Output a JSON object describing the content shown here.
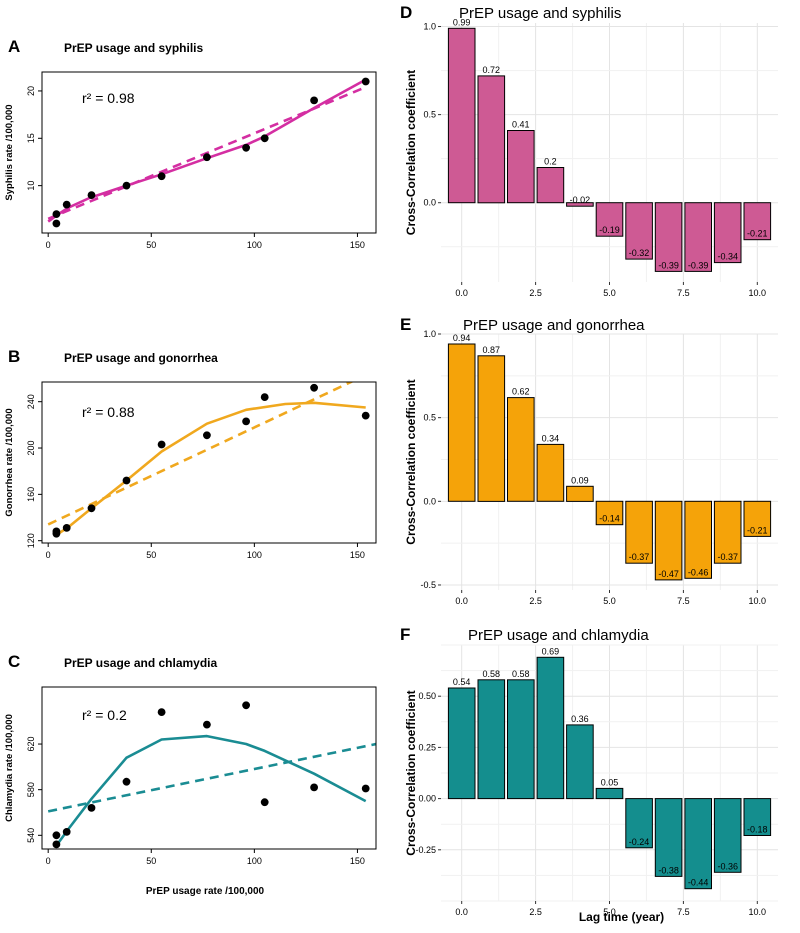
{
  "chart_data": [
    {
      "id": "A",
      "type": "scatter",
      "panel_label": "A",
      "title": "PrEP usage and syphilis",
      "xlabel": "",
      "ylabel": "Syphilis rate /100,000",
      "xlim": [
        -3,
        159
      ],
      "ylim": [
        5,
        22
      ],
      "xticks": [
        0,
        50,
        100,
        150
      ],
      "yticks": [
        10,
        15,
        20
      ],
      "color": "#d42ea2",
      "r2_label": "r² =  0.98",
      "points": [
        [
          4,
          6
        ],
        [
          4,
          7
        ],
        [
          9,
          8
        ],
        [
          21,
          9
        ],
        [
          38,
          10
        ],
        [
          55,
          11
        ],
        [
          77,
          13
        ],
        [
          96,
          14
        ],
        [
          105,
          15
        ],
        [
          129,
          19
        ],
        [
          154,
          21
        ]
      ],
      "smooth_line": [
        [
          0,
          6.2
        ],
        [
          5,
          7.0
        ],
        [
          10,
          7.7
        ],
        [
          20,
          8.7
        ],
        [
          38,
          10.0
        ],
        [
          55,
          11.2
        ],
        [
          77,
          12.9
        ],
        [
          96,
          14.3
        ],
        [
          105,
          15.2
        ],
        [
          129,
          18.2
        ],
        [
          154,
          21.2
        ]
      ],
      "linear_fit": [
        [
          0,
          6.5
        ],
        [
          154,
          20.4
        ]
      ]
    },
    {
      "id": "B",
      "type": "scatter",
      "panel_label": "B",
      "title": "PrEP usage and gonorrhea",
      "xlabel": "",
      "ylabel": "Gonorrhea rate /100,000",
      "xlim": [
        -3,
        159
      ],
      "ylim": [
        118,
        257
      ],
      "xticks": [
        0,
        50,
        100,
        150
      ],
      "yticks": [
        120,
        160,
        200,
        240
      ],
      "color": "#f0a81e",
      "r2_label": "r² =  0.88",
      "points": [
        [
          4,
          126
        ],
        [
          4,
          128
        ],
        [
          9,
          131
        ],
        [
          21,
          148
        ],
        [
          38,
          172
        ],
        [
          55,
          203
        ],
        [
          77,
          211
        ],
        [
          96,
          223
        ],
        [
          105,
          244
        ],
        [
          129,
          252
        ],
        [
          154,
          228
        ]
      ],
      "smooth_line": [
        [
          4,
          125
        ],
        [
          10,
          132
        ],
        [
          21,
          148
        ],
        [
          38,
          172
        ],
        [
          55,
          197
        ],
        [
          77,
          221
        ],
        [
          96,
          233
        ],
        [
          115,
          238
        ],
        [
          129,
          239
        ],
        [
          154,
          235
        ]
      ],
      "linear_fit": [
        [
          0,
          134
        ],
        [
          154,
          263
        ]
      ]
    },
    {
      "id": "C",
      "type": "scatter",
      "panel_label": "C",
      "title": "PrEP usage and chlamydia",
      "xlabel": "PrEP usage rate /100,000",
      "ylabel": "Chlamydia rate /100,000",
      "xlim": [
        -3,
        159
      ],
      "ylim": [
        528,
        670
      ],
      "xticks": [
        0,
        50,
        100,
        150
      ],
      "yticks": [
        540,
        580,
        620
      ],
      "color": "#1a8c93",
      "r2_label": "r² =  0.2",
      "points": [
        [
          4,
          532
        ],
        [
          4,
          540
        ],
        [
          9,
          543
        ],
        [
          21,
          564
        ],
        [
          38,
          587
        ],
        [
          55,
          648
        ],
        [
          77,
          637
        ],
        [
          96,
          654
        ],
        [
          105,
          569
        ],
        [
          129,
          582
        ],
        [
          154,
          581
        ]
      ],
      "smooth_line": [
        [
          4,
          531
        ],
        [
          10,
          546
        ],
        [
          21,
          572
        ],
        [
          38,
          608
        ],
        [
          55,
          624
        ],
        [
          77,
          627
        ],
        [
          96,
          620
        ],
        [
          105,
          614
        ],
        [
          129,
          594
        ],
        [
          154,
          570
        ]
      ],
      "linear_fit": [
        [
          0,
          561
        ],
        [
          159,
          620
        ]
      ]
    },
    {
      "id": "D",
      "type": "bar",
      "panel_label": "D",
      "title": "PrEP usage and syphilis",
      "xlabel": "",
      "ylabel": "Cross-Correlation coefficient",
      "x": [
        0,
        1,
        2,
        3,
        4,
        5,
        6,
        7,
        8,
        9,
        10
      ],
      "values": [
        0.99,
        0.72,
        0.41,
        0.2,
        -0.02,
        -0.19,
        -0.32,
        -0.39,
        -0.39,
        -0.34,
        -0.21
      ],
      "bar_labels": [
        "0.99",
        "0.72",
        "0.41",
        "0.2",
        "-0.02",
        "-0.19",
        "-0.32",
        "-0.39",
        "-0.39",
        "-0.34",
        "-0.21"
      ],
      "xlim": [
        -0.7,
        10.7
      ],
      "ylim": [
        -0.45,
        1.02
      ],
      "xticks": [
        0.0,
        2.5,
        5.0,
        7.5,
        10.0
      ],
      "xtick_labels": [
        "0.0",
        "2.5",
        "5.0",
        "7.5",
        "10.0"
      ],
      "yticks": [
        0.0,
        0.5,
        1.0
      ],
      "ytick_labels": [
        "0.0",
        "0.5",
        "1.0"
      ],
      "color": "#ce5a94"
    },
    {
      "id": "E",
      "type": "bar",
      "panel_label": "E",
      "title": "PrEP usage and gonorrhea",
      "xlabel": "",
      "ylabel": "Cross-Correlation coefficient",
      "x": [
        0,
        1,
        2,
        3,
        4,
        5,
        6,
        7,
        8,
        9,
        10
      ],
      "values": [
        0.94,
        0.87,
        0.62,
        0.34,
        0.09,
        -0.14,
        -0.37,
        -0.47,
        -0.46,
        -0.37,
        -0.21
      ],
      "bar_labels": [
        "0.94",
        "0.87",
        "0.62",
        "0.34",
        "0.09",
        "-0.14",
        "-0.37",
        "-0.47",
        "-0.46",
        "-0.37",
        "-0.21"
      ],
      "xlim": [
        -0.7,
        10.7
      ],
      "ylim": [
        -0.53,
        1.0
      ],
      "xticks": [
        0.0,
        2.5,
        5.0,
        7.5,
        10.0
      ],
      "xtick_labels": [
        "0.0",
        "2.5",
        "5.0",
        "7.5",
        "10.0"
      ],
      "yticks": [
        -0.5,
        0.0,
        0.5,
        1.0
      ],
      "ytick_labels": [
        "-0.5",
        "0.0",
        "0.5",
        "1.0"
      ],
      "color": "#f5a309"
    },
    {
      "id": "F",
      "type": "bar",
      "panel_label": "F",
      "title": "PrEP usage and chlamydia",
      "xlabel": "Lag time (year)",
      "ylabel": "Cross-Correlation coefficient",
      "x": [
        0,
        1,
        2,
        3,
        4,
        5,
        6,
        7,
        8,
        9,
        10
      ],
      "values": [
        0.54,
        0.58,
        0.58,
        0.69,
        0.36,
        0.05,
        -0.24,
        -0.38,
        -0.44,
        -0.36,
        -0.18
      ],
      "bar_labels": [
        "0.54",
        "0.58",
        "0.58",
        "0.69",
        "0.36",
        "0.05",
        "-0.24",
        "-0.38",
        "-0.44",
        "-0.36",
        "-0.18"
      ],
      "xlim": [
        -0.7,
        10.7
      ],
      "ylim": [
        -0.5,
        0.75
      ],
      "xticks": [
        0.0,
        2.5,
        5.0,
        7.5,
        10.0
      ],
      "xtick_labels": [
        "0.0",
        "2.5",
        "5.0",
        "7.5",
        "10.0"
      ],
      "yticks": [
        -0.25,
        0.0,
        0.25,
        0.5
      ],
      "ytick_labels": [
        "-0.25",
        "0.00",
        "0.25",
        "0.50"
      ],
      "color": "#148e8e"
    }
  ]
}
